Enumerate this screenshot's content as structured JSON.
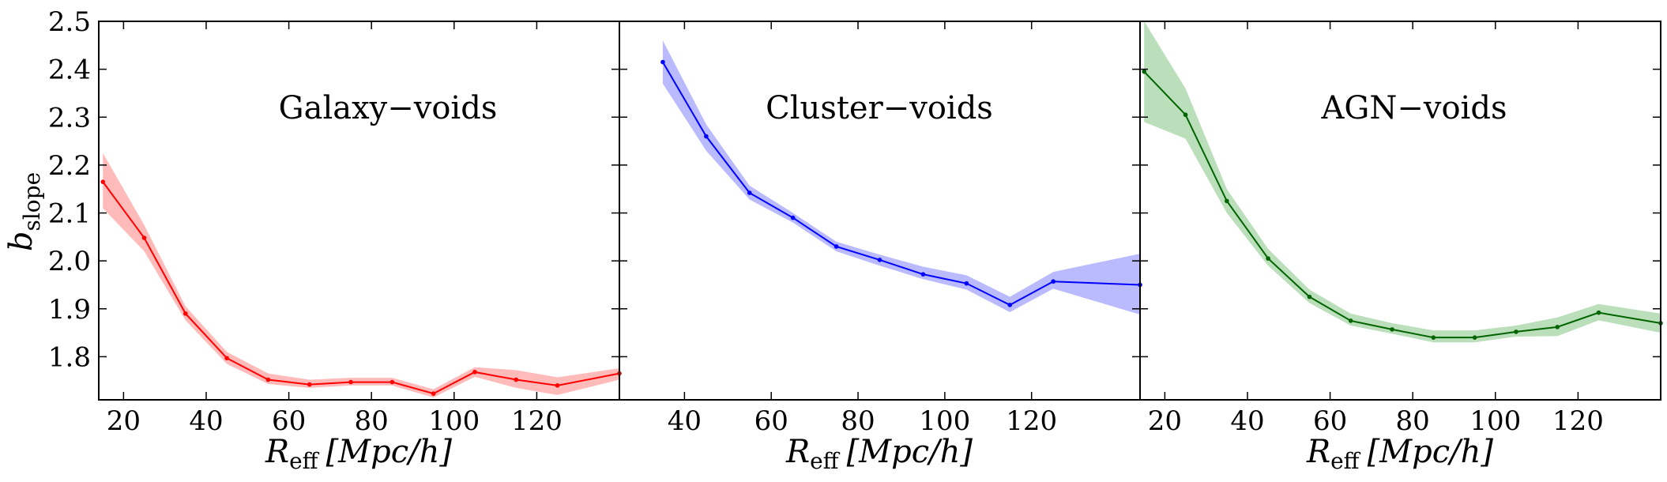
{
  "chart_data": {
    "type": "line",
    "shared_y": {
      "label_main": "b",
      "label_sub": "slope",
      "ylim": [
        1.71,
        2.5
      ],
      "ticks": [
        1.8,
        1.9,
        2.0,
        2.1,
        2.2,
        2.3,
        2.4,
        2.5
      ],
      "tick_labels": [
        "1.8",
        "1.9",
        "2.0",
        "2.1",
        "2.2",
        "2.3",
        "2.4",
        "2.5"
      ]
    },
    "panels": [
      {
        "title": "Galaxy−voids",
        "color": "#ff0000",
        "band_color": "#ffb3b3",
        "xlabel_main": "R",
        "xlabel_sub": "eff",
        "xlabel_unit": "[Mpc/h]",
        "xlim": [
          14,
          140
        ],
        "x_ticks": [
          20,
          40,
          60,
          80,
          100,
          120
        ],
        "x_tick_labels": [
          "20",
          "40",
          "60",
          "80",
          "100",
          "120"
        ],
        "x": [
          15,
          25,
          35,
          45,
          55,
          65,
          75,
          85,
          95,
          105,
          115,
          125,
          140
        ],
        "y": [
          2.165,
          2.048,
          1.89,
          1.797,
          1.752,
          1.742,
          1.747,
          1.747,
          1.723,
          1.768,
          1.752,
          1.74,
          1.765
        ],
        "y_upper": [
          2.225,
          2.075,
          1.905,
          1.81,
          1.765,
          1.752,
          1.756,
          1.756,
          1.732,
          1.778,
          1.772,
          1.757,
          1.776
        ],
        "y_lower": [
          2.11,
          2.02,
          1.876,
          1.785,
          1.743,
          1.735,
          1.74,
          1.74,
          1.715,
          1.758,
          1.735,
          1.72,
          1.752
        ]
      },
      {
        "title": "Cluster−voids",
        "color": "#0000ff",
        "band_color": "#b3b3ff",
        "xlabel_main": "R",
        "xlabel_sub": "eff",
        "xlabel_unit": "[Mpc/h]",
        "xlim": [
          25,
          145
        ],
        "x_ticks": [
          40,
          60,
          80,
          100,
          120
        ],
        "x_tick_labels": [
          "40",
          "60",
          "80",
          "100",
          "120"
        ],
        "x": [
          35,
          45,
          55,
          65,
          75,
          85,
          95,
          105,
          115,
          125,
          145
        ],
        "y": [
          2.415,
          2.26,
          2.142,
          2.09,
          2.03,
          2.002,
          1.972,
          1.953,
          1.908,
          1.957,
          1.95
        ],
        "y_upper": [
          2.46,
          2.285,
          2.157,
          2.1,
          2.04,
          2.013,
          1.988,
          1.97,
          1.925,
          1.977,
          2.015
        ],
        "y_lower": [
          2.37,
          2.23,
          2.128,
          2.08,
          2.02,
          1.99,
          1.962,
          1.94,
          1.893,
          1.942,
          1.888
        ]
      },
      {
        "title": "AGN−voids",
        "color": "#006400",
        "band_color": "#b3dbb3",
        "xlabel_main": "R",
        "xlabel_sub": "eff",
        "xlabel_unit": "[Mpc/h]",
        "xlim": [
          14,
          140
        ],
        "x_ticks": [
          20,
          40,
          60,
          80,
          100,
          120
        ],
        "x_tick_labels": [
          "20",
          "40",
          "60",
          "80",
          "100",
          "120"
        ],
        "x": [
          15,
          25,
          35,
          45,
          55,
          65,
          75,
          85,
          95,
          105,
          115,
          125,
          140
        ],
        "y": [
          2.395,
          2.305,
          2.125,
          2.005,
          1.925,
          1.875,
          1.857,
          1.84,
          1.84,
          1.852,
          1.862,
          1.892,
          1.87
        ],
        "y_upper": [
          2.5,
          2.36,
          2.15,
          2.025,
          1.94,
          1.89,
          1.87,
          1.855,
          1.855,
          1.865,
          1.882,
          1.91,
          1.89
        ],
        "y_lower": [
          2.29,
          2.255,
          2.1,
          1.99,
          1.912,
          1.865,
          1.848,
          1.83,
          1.83,
          1.842,
          1.843,
          1.876,
          1.85
        ]
      }
    ]
  }
}
